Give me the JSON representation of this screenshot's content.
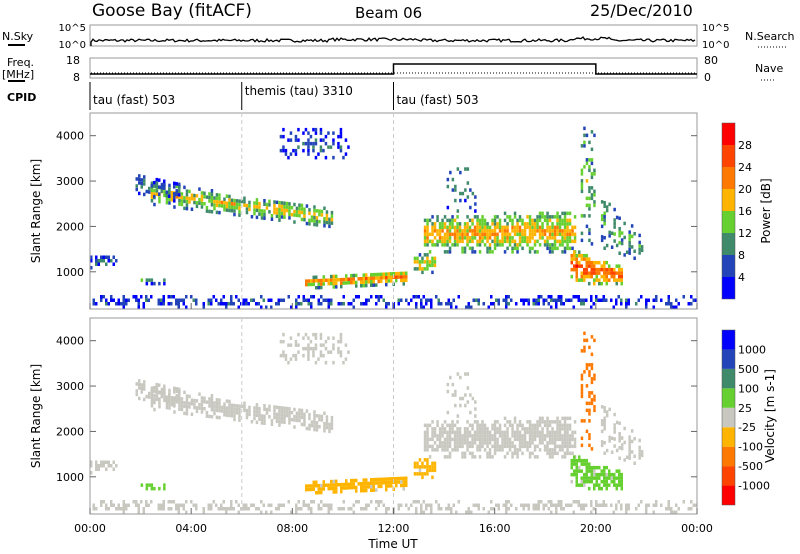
{
  "header": {
    "station": "Goose Bay (fitACF)",
    "beam": "Beam 06",
    "date": "25/Dec/2010"
  },
  "nsky": {
    "label": "N.Sky",
    "right_label": "N.Search",
    "ticks_left": [
      "10^5",
      "10^0"
    ],
    "ticks_right": [
      "10^5",
      "10^0"
    ]
  },
  "freq": {
    "label1": "Freq.",
    "label2": "[MHz]",
    "right_label": "Nave",
    "ticks_left": [
      "18",
      "8"
    ],
    "ticks_right": [
      "80",
      "0"
    ]
  },
  "cpid": {
    "label": "CPID",
    "segments": [
      {
        "start_h": 0,
        "label": "tau (fast) 503"
      },
      {
        "start_h": 6,
        "label": "themis (tau) 3310"
      },
      {
        "start_h": 12,
        "label": "tau (fast) 503"
      }
    ]
  },
  "chart_data": {
    "type": "heatmap",
    "xlabel": "Time UT",
    "ylabel": "Slant Range [km]",
    "xlim_hours": [
      0,
      24
    ],
    "ylim_km": [
      180,
      4500
    ],
    "x_ticks": [
      "00:00",
      "04:00",
      "08:00",
      "12:00",
      "16:00",
      "20:00",
      "00:00"
    ],
    "y_ticks": [
      "1000",
      "2000",
      "3000",
      "4000"
    ],
    "freq_series": [
      {
        "t0": 0,
        "t1": 12,
        "mhz": 10
      },
      {
        "t0": 12,
        "t1": 20,
        "mhz": 15
      },
      {
        "t0": 20,
        "t1": 24,
        "mhz": 10
      }
    ],
    "nave_mean": 20,
    "power_colorbar": {
      "label": "Power [dB]",
      "ticks": [
        "28",
        "24",
        "20",
        "16",
        "12",
        "8",
        "4"
      ],
      "bins": [
        0,
        4,
        8,
        12,
        16,
        20,
        24,
        28,
        32
      ],
      "colors": [
        "#0000ff",
        "#2244b8",
        "#3f8a6a",
        "#66d030",
        "#ffb400",
        "#ff7800",
        "#ff4400",
        "#ff0000"
      ]
    },
    "velocity_colorbar": {
      "label": "Velocity [m s-1]",
      "ticks": [
        "1000",
        "500",
        "100",
        "25",
        "-25",
        "-100",
        "-500",
        "-1000"
      ],
      "colors": [
        "#0000ff",
        "#2244b8",
        "#3f8a6a",
        "#66d030",
        "#c8c8c0",
        "#ffb400",
        "#ff7800",
        "#ff4400",
        "#ff0000"
      ]
    },
    "echo_regions": [
      {
        "t0": 2.4,
        "t1": 9.6,
        "r_lo0": 2450,
        "r_hi0": 2950,
        "r_lo1": 1950,
        "r_hi1": 2350,
        "power": 17,
        "velocity": 0,
        "density": 0.8
      },
      {
        "t0": 1.8,
        "t1": 3.5,
        "r_lo0": 2700,
        "r_hi0": 3100,
        "r_lo1": 2500,
        "r_hi1": 2900,
        "power": 8,
        "velocity": 0,
        "density": 0.5
      },
      {
        "t0": 7.5,
        "t1": 10.2,
        "r_lo0": 3400,
        "r_hi0": 4100,
        "r_lo1": 3400,
        "r_hi1": 4100,
        "power": 6,
        "velocity": 0,
        "density": 0.35
      },
      {
        "t0": 8.5,
        "t1": 12.5,
        "r_lo0": 600,
        "r_hi0": 850,
        "r_lo1": 700,
        "r_hi1": 1000,
        "power": 22,
        "velocity": -60,
        "density": 0.9
      },
      {
        "t0": 0.0,
        "t1": 1.0,
        "r_lo0": 1050,
        "r_hi0": 1350,
        "r_lo1": 1050,
        "r_hi1": 1300,
        "power": 6,
        "velocity": 0,
        "density": 0.7
      },
      {
        "t0": 2.0,
        "t1": 3.0,
        "r_lo0": 700,
        "r_hi0": 850,
        "r_lo1": 700,
        "r_hi1": 850,
        "power": 10,
        "velocity": 60,
        "density": 0.5
      },
      {
        "t0": 12.8,
        "t1": 13.6,
        "r_lo0": 950,
        "r_hi0": 1350,
        "r_lo1": 950,
        "r_hi1": 1350,
        "power": 20,
        "velocity": -60,
        "density": 0.8
      },
      {
        "t0": 13.2,
        "t1": 19.2,
        "r_lo0": 1400,
        "r_hi0": 2200,
        "r_lo1": 1400,
        "r_hi1": 2300,
        "power": 20,
        "velocity": 0,
        "density": 0.85
      },
      {
        "t0": 14.0,
        "t1": 15.2,
        "r_lo0": 2300,
        "r_hi0": 3300,
        "r_lo1": 2300,
        "r_hi1": 3300,
        "power": 9,
        "velocity": 0,
        "density": 0.25
      },
      {
        "t0": 19.0,
        "t1": 21.0,
        "r_lo0": 700,
        "r_hi0": 1500,
        "r_lo1": 700,
        "r_hi1": 1100,
        "power": 26,
        "velocity": 60,
        "density": 0.85
      },
      {
        "t0": 19.4,
        "t1": 19.9,
        "r_lo0": 1500,
        "r_hi0": 4200,
        "r_lo1": 1500,
        "r_hi1": 4200,
        "power": 14,
        "velocity": -200,
        "density": 0.35
      },
      {
        "t0": 20.2,
        "t1": 21.8,
        "r_lo0": 1500,
        "r_hi0": 2700,
        "r_lo1": 1200,
        "r_hi1": 1800,
        "power": 12,
        "velocity": 0,
        "density": 0.4
      },
      {
        "t0": 0.0,
        "t1": 24.0,
        "r_lo0": 180,
        "r_hi0": 420,
        "r_lo1": 180,
        "r_hi1": 420,
        "power": 6,
        "velocity": 0,
        "density": 0.45
      }
    ]
  }
}
